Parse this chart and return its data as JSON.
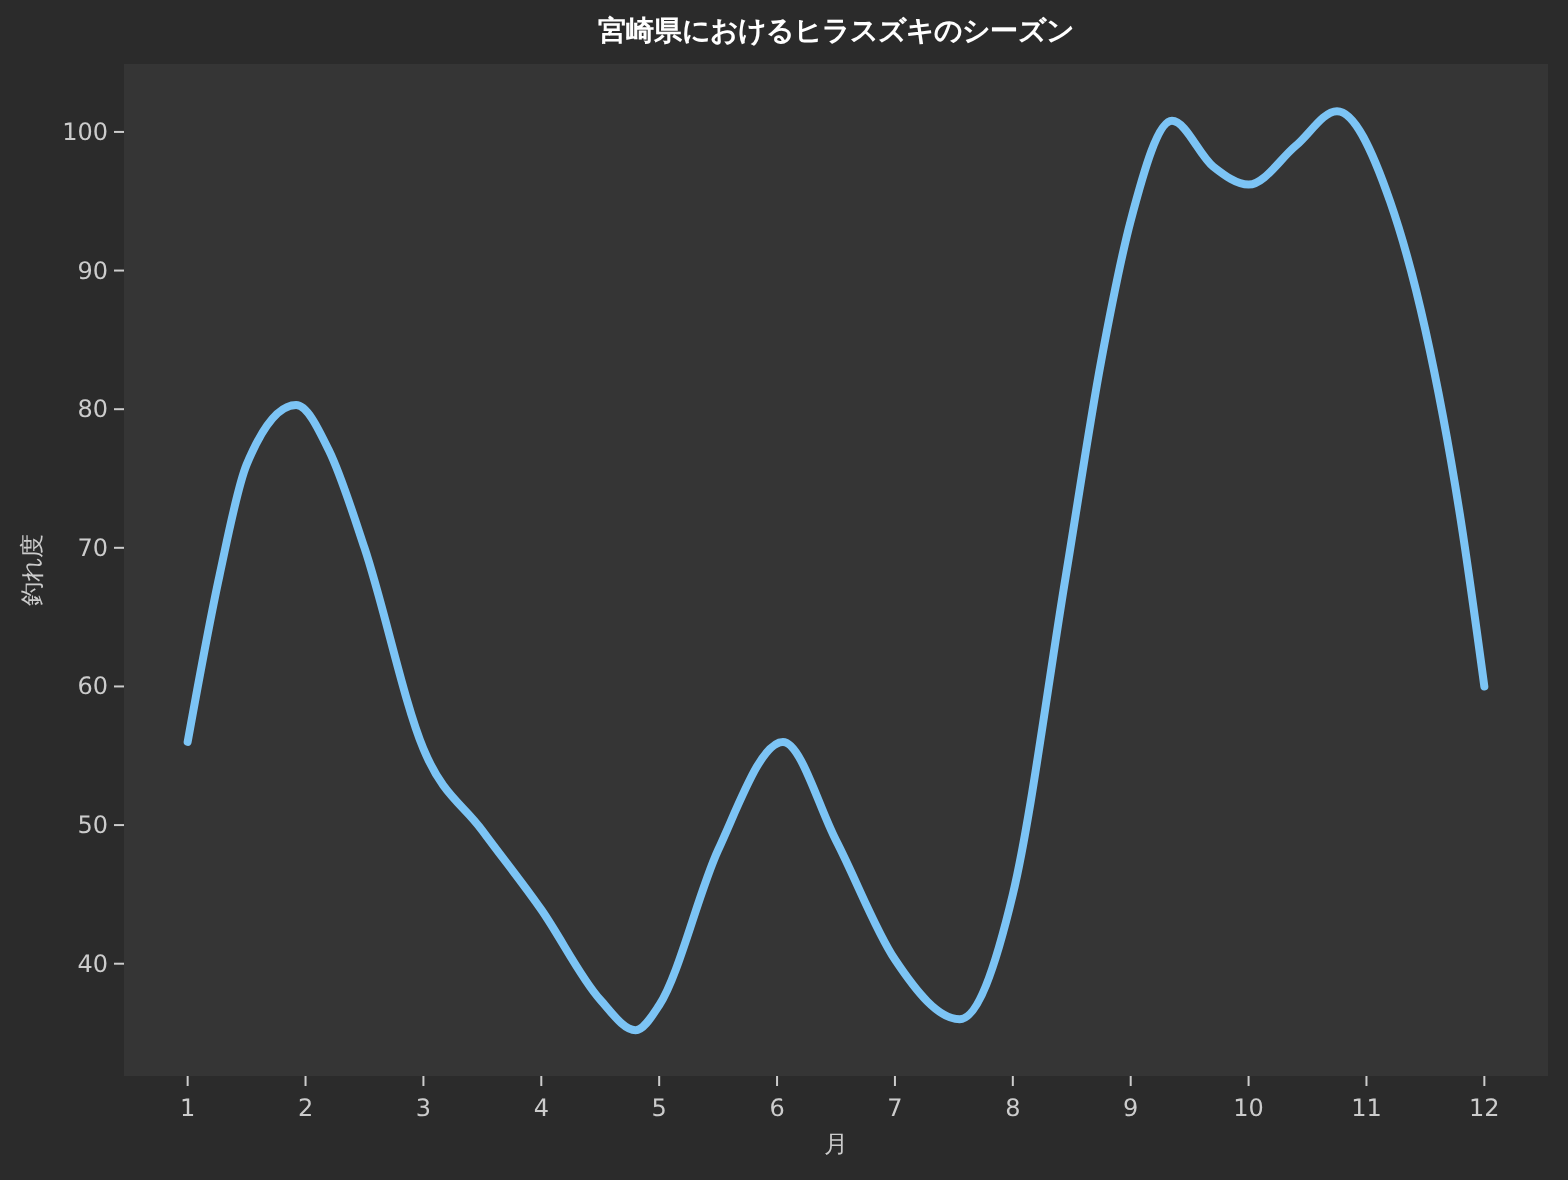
{
  "chart_data": {
    "type": "line",
    "title": "宮崎県におけるヒラスズキのシーズン",
    "xlabel": "月",
    "ylabel": "釣れ度",
    "xlim": [
      0.46,
      12.54
    ],
    "ylim": [
      31.9,
      104.9
    ],
    "xticks": [
      1,
      2,
      3,
      4,
      5,
      6,
      7,
      8,
      9,
      10,
      11,
      12
    ],
    "yticks": [
      40,
      50,
      60,
      70,
      80,
      90,
      100
    ],
    "grid": false,
    "marker": "none",
    "line_style": "solid",
    "series": [
      {
        "color": "#7cc4f5",
        "x": [
          1,
          1.27,
          1.5,
          1.92,
          2.2,
          2.5,
          3,
          3.5,
          4,
          4.5,
          4.8,
          5,
          5.5,
          6.05,
          6.5,
          7,
          7.55,
          8,
          8.45,
          8.75,
          9,
          9.35,
          9.7,
          10,
          10.4,
          10.75,
          11.2,
          11.5,
          11.8,
          12
        ],
        "values": [
          56,
          68,
          76,
          80.3,
          77,
          70,
          55.5,
          49.6,
          43.9,
          37.4,
          35.2,
          37,
          48.2,
          56,
          48.9,
          40.3,
          36,
          45,
          68,
          83.5,
          93.6,
          100.8,
          97.5,
          96.2,
          99,
          101.5,
          95,
          85.7,
          72,
          60
        ]
      }
    ]
  }
}
